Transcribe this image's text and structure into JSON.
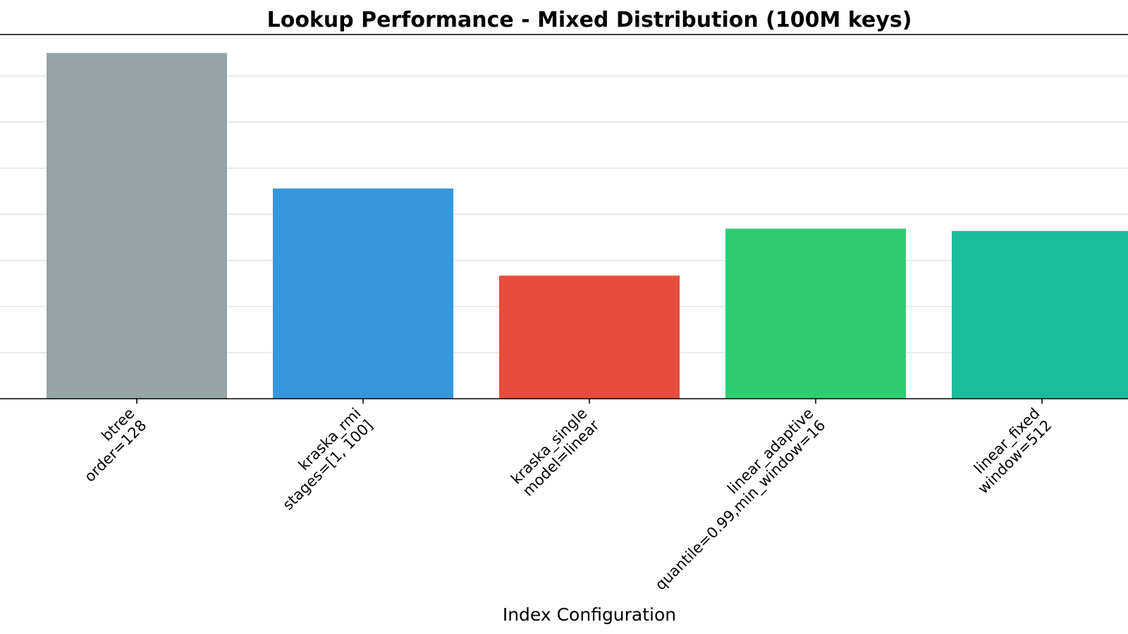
{
  "chart_data": {
    "type": "bar",
    "title": "Lookup Performance - Mixed Distribution (100M keys)",
    "xlabel": "Index Configuration",
    "ylabel": "",
    "categories": [
      [
        "btree",
        "order=128"
      ],
      [
        "kraska_rmi",
        "stages=[1, 100]"
      ],
      [
        "kraska_single",
        "model=linear"
      ],
      [
        "linear_adaptive",
        "quantile=0.99,min_window=16"
      ],
      [
        "linear_fixed",
        "window=512"
      ]
    ],
    "values": [
      7.5,
      4.56,
      2.67,
      3.69,
      3.64
    ],
    "ylim": [
      0,
      7.9
    ],
    "grid": true,
    "colors": [
      "#95a5a6",
      "#3498db",
      "#e74c3c",
      "#2ecc71",
      "#1abc9c"
    ]
  }
}
